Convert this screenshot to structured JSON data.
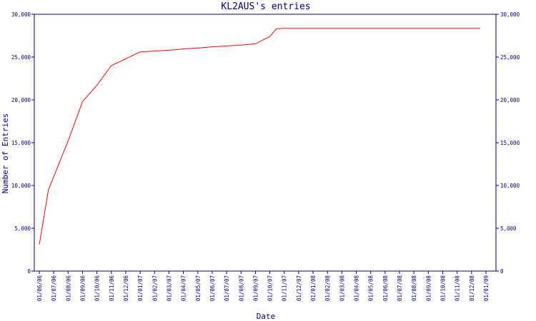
{
  "chart_data": {
    "type": "line",
    "title": "KL2AUS's entries",
    "xlabel": "Date",
    "ylabel": "Number of Entries",
    "ylim": [
      0,
      30000
    ],
    "y_ticks": [
      0,
      5000,
      10000,
      15000,
      20000,
      25000,
      30000
    ],
    "y_tick_labels": [
      "0",
      "5,000",
      "10,000",
      "15,000",
      "20,000",
      "25,000",
      "30,000"
    ],
    "x_tick_labels": [
      "01/06/06",
      "01/07/06",
      "01/08/06",
      "01/09/06",
      "01/10/06",
      "01/11/06",
      "01/12/06",
      "01/01/07",
      "01/02/07",
      "01/03/07",
      "01/04/07",
      "01/05/07",
      "01/06/07",
      "01/07/07",
      "01/08/07",
      "01/09/07",
      "01/10/07",
      "01/11/07",
      "01/12/07",
      "01/01/08",
      "01/02/08",
      "01/03/08",
      "01/04/08",
      "01/05/08",
      "01/06/08",
      "01/07/08",
      "01/08/08",
      "01/09/08",
      "01/10/08",
      "01/11/08",
      "01/12/08",
      "01/01/09"
    ],
    "grid": false,
    "colors": {
      "axis": "#000080",
      "series": "#ff0000"
    },
    "series": [
      {
        "x": [
          "2006-06-01",
          "2006-06-20",
          "2006-08-01",
          "2006-09-01",
          "2006-10-01",
          "2006-11-01",
          "2006-12-01",
          "2007-01-01",
          "2007-02-01",
          "2007-03-01",
          "2007-04-01",
          "2007-05-01",
          "2007-06-01",
          "2007-07-01",
          "2007-08-01",
          "2007-09-01",
          "2007-10-01",
          "2007-10-15",
          "2007-11-01",
          "2007-12-01",
          "2008-06-01",
          "2008-12-01",
          "2008-12-20"
        ],
        "values": [
          3100,
          9500,
          15200,
          19800,
          21700,
          24000,
          24800,
          25600,
          25700,
          25800,
          25950,
          26050,
          26200,
          26300,
          26400,
          26550,
          27400,
          28300,
          28350,
          28350,
          28350,
          28350,
          28350
        ]
      }
    ]
  }
}
